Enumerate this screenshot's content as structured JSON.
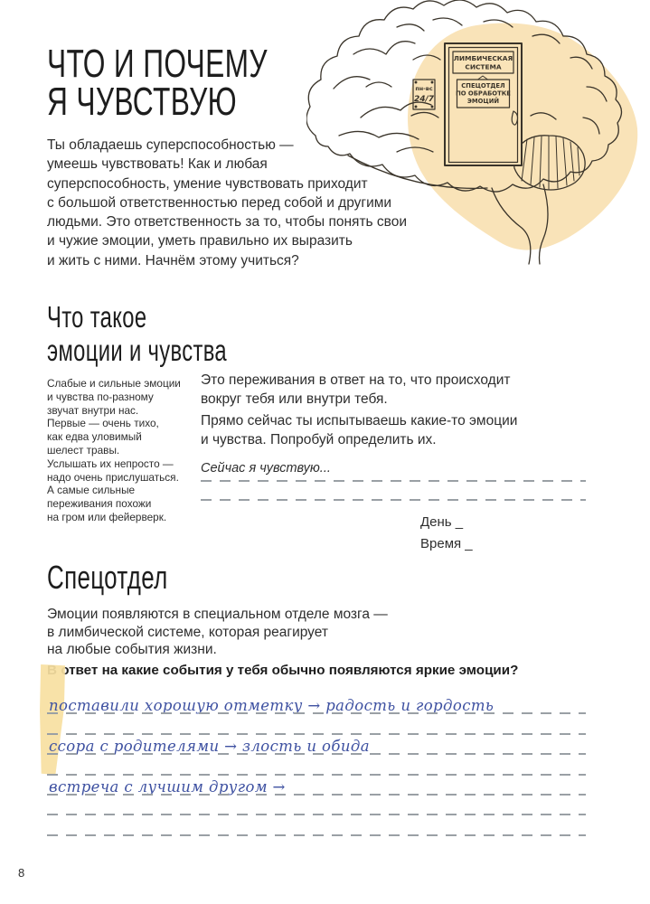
{
  "page": {
    "number": "8",
    "background": "#ffffff"
  },
  "header": {
    "title": "ЧТО И ПОЧЕМУ\nЯ ЧУВСТВУЮ",
    "intro": "Ты обладаешь суперспособностью —\nумеешь чувствовать! Как и любая\nсуперспособность, умение чувствовать приходит\nс большой ответственностью перед собой и другими\nлюдьми. Это ответственность за то, чтобы понять свои\nи чужие эмоции, уметь правильно их выразить\nи жить с ними. Начнём этому учиться?"
  },
  "illustration": {
    "name": "brain-with-door",
    "blob_color": "#f9e3b8",
    "line_color": "#3a342a",
    "sign_system": [
      "ЛИМБИЧЕСКАЯ",
      "СИСТЕМА"
    ],
    "sign_dept": [
      "СПЕЦОТДЕЛ",
      "ПО ОБРАБОТКЕ",
      "ЭМОЦИЙ"
    ],
    "sign_schedule": [
      "пн-вс",
      "24/7"
    ]
  },
  "section_what": {
    "heading": "Что такое\nэмоции и чувства",
    "aside": "Слабые и сильные эмоции\nи чувства по-разному\nзвучат внутри нас.\nПервые — очень тихо,\nкак едва уловимый\nшелест травы.\nУслышать их непросто —\nнадо очень прислушаться.\nА самые сильные\nпереживания похожи\nна гром или фейерверк.",
    "para1": "Это переживания в ответ на то, что происходит\nвокруг тебя или внутри тебя.",
    "para2": "Прямо сейчас ты испытываешь какие-то эмоции\nи чувства. Попробуй определить их.",
    "prompt": "Сейчас я чувствую...",
    "day_label": "День _",
    "time_label": "Время _"
  },
  "section_dept": {
    "heading": "Спецотдел",
    "para": "Эмоции появляются в специальном отделе мозга —\nв лимбической системе, которая реагирует\nна любые события жизни.",
    "question": "В ответ на какие события у тебя обычно появляются яркие эмоции?",
    "highlight_color": "#f7dfa1",
    "ink_color": "#3e51a1",
    "answers": [
      {
        "text": "поставили хорошую отметку → радость и гордость"
      },
      {
        "text": ""
      },
      {
        "text": "ссора с родителями → злость и обида"
      },
      {
        "text": ""
      },
      {
        "text": "встреча с лучшим другом →"
      },
      {
        "text": ""
      },
      {
        "text": ""
      }
    ]
  }
}
